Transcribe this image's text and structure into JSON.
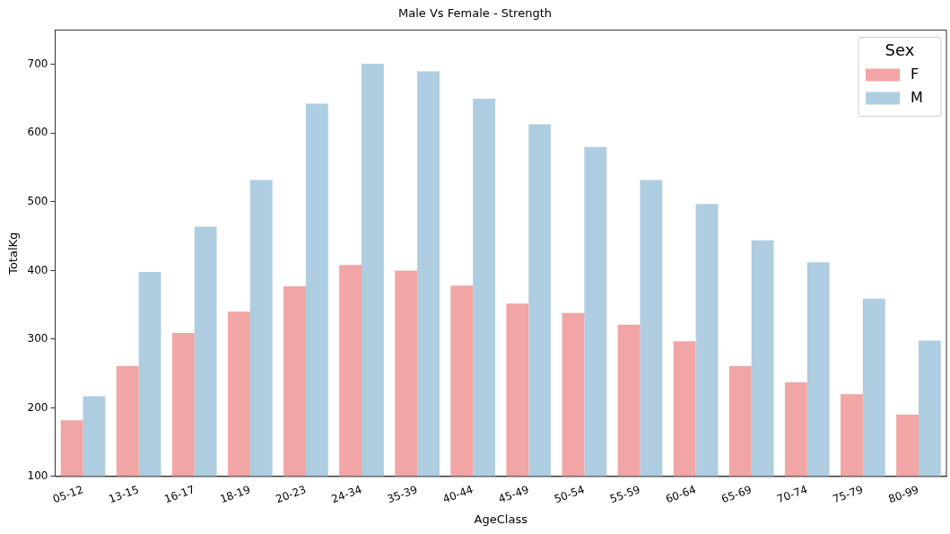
{
  "chart_data": {
    "type": "bar",
    "title": "Male Vs Female - Strength",
    "xlabel": "AgeClass",
    "ylabel": "TotalKg",
    "legend_title": "Sex",
    "legend": "top right",
    "grid": false,
    "categories": [
      "05-12",
      "13-15",
      "16-17",
      "18-19",
      "20-23",
      "24-34",
      "35-39",
      "40-44",
      "45-49",
      "50-54",
      "55-59",
      "60-64",
      "65-69",
      "70-74",
      "75-79",
      "80-99"
    ],
    "ylim": [
      100,
      750
    ],
    "yticks": [
      100,
      200,
      300,
      400,
      500,
      600,
      700
    ],
    "series": [
      {
        "name": "F",
        "color": "#f1a5a4",
        "values": [
          182,
          261,
          309,
          340,
          377,
          408,
          400,
          378,
          352,
          338,
          321,
          297,
          261,
          237,
          220,
          190
        ]
      },
      {
        "name": "M",
        "color": "#aecde0",
        "values": [
          217,
          398,
          464,
          532,
          643,
          701,
          690,
          650,
          613,
          580,
          532,
          497,
          444,
          412,
          359,
          298
        ]
      }
    ]
  }
}
